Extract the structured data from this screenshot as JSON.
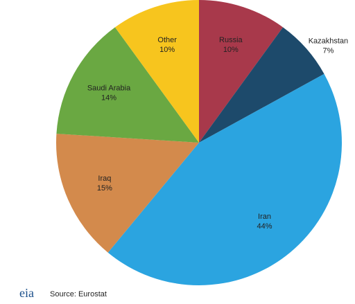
{
  "chart_data": {
    "type": "pie",
    "categories": [
      "Russia",
      "Kazakhstan",
      "Iran",
      "Iraq",
      "Saudi Arabia",
      "Other"
    ],
    "values": [
      10,
      7,
      44,
      15,
      14,
      10
    ],
    "value_labels": [
      "10%",
      "7%",
      "44%",
      "15%",
      "14%",
      "10%"
    ],
    "colors": [
      "#a8394b",
      "#1d4a6b",
      "#2ba4e0",
      "#d38a4c",
      "#6aa842",
      "#f7c51e"
    ],
    "source": "Source: Eurostat",
    "logo": "eia"
  }
}
